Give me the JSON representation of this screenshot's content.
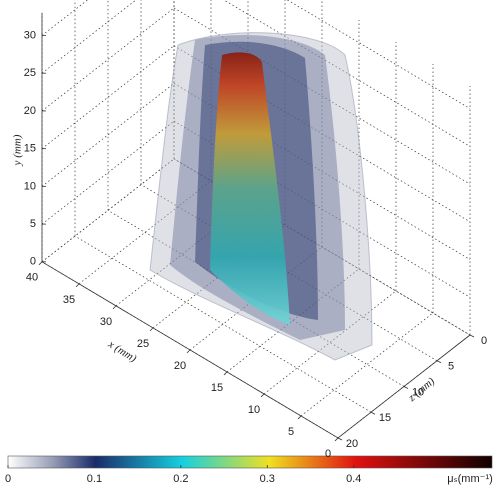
{
  "chart_data": {
    "type": "volume3d",
    "xlabel": "x (mm)",
    "ylabel": "y (mm)",
    "zlabel": "z (mm)",
    "xlim": [
      0,
      40
    ],
    "ylim": [
      0,
      33
    ],
    "zlim": [
      0,
      20
    ],
    "xticks": [
      0,
      5,
      10,
      15,
      20,
      25,
      30,
      35,
      40
    ],
    "yticks": [
      0,
      5,
      10,
      15,
      20,
      25,
      30
    ],
    "zticks": [
      0,
      5,
      10,
      15,
      20
    ],
    "grid": true,
    "colorbar": {
      "label": "μₛ(mm⁻¹)",
      "lim": [
        0,
        0.56
      ],
      "ticks": [
        0,
        0.1,
        0.2,
        0.3,
        0.4
      ]
    }
  }
}
